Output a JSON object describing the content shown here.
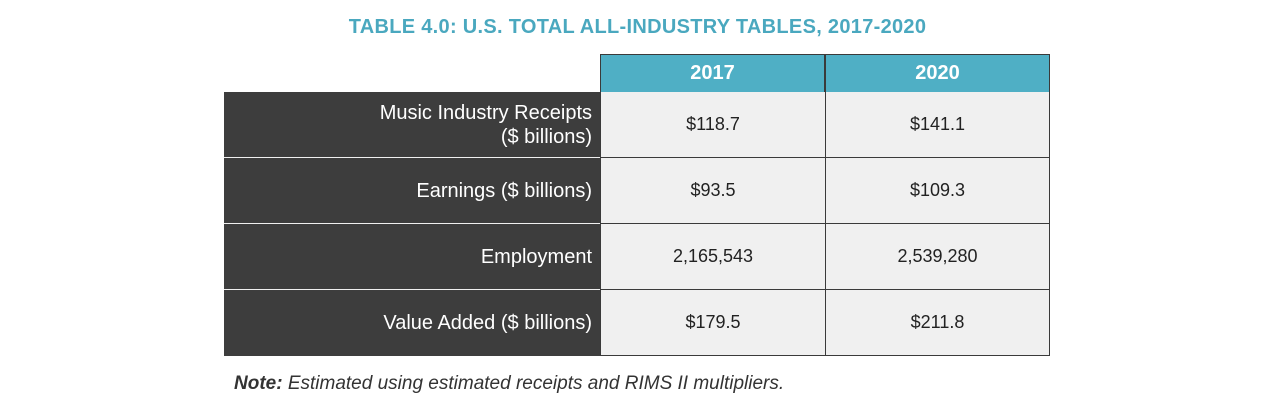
{
  "title": "TABLE 4.0: U.S. TOTAL ALL-INDUSTRY TABLES, 2017-2020",
  "columns": [
    "2017",
    "2020"
  ],
  "rows": [
    {
      "label": "Music Industry Receipts\n($ billions)",
      "values": [
        "$118.7",
        "$141.1"
      ]
    },
    {
      "label": "Earnings ($ billions)",
      "values": [
        "$93.5",
        "$109.3"
      ]
    },
    {
      "label": "Employment",
      "values": [
        "2,165,543",
        "2,539,280"
      ]
    },
    {
      "label": "Value Added ($ billions)",
      "values": [
        "$179.5",
        "$211.8"
      ]
    }
  ],
  "note": {
    "label": "Note:",
    "text": " Estimated using estimated receipts and RIMS II multipliers."
  },
  "colors": {
    "accent": "#4fafc5",
    "row_label_bg": "#3d3d3d",
    "cell_bg": "#f0f0f0"
  }
}
